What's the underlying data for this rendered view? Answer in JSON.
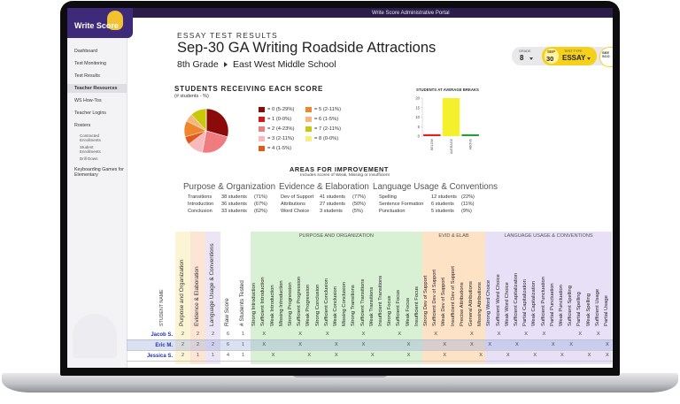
{
  "header": {
    "logo": "Write Score",
    "portal_title": "Write Score Administrative Portal"
  },
  "sidebar": {
    "items": [
      "Dashboard",
      "Test Monitoring",
      "Test Results",
      "Teacher Resources",
      "WS How-Tos",
      "Teacher Logins",
      "Rosters",
      "Keyboarding Games for Elementary"
    ],
    "active": "Teacher Resources",
    "rosters_children": [
      "Contracted Enrollments",
      "Student Enrollments",
      "Drill Down"
    ]
  },
  "page": {
    "eyebrow": "ESSAY TEST RESULTS",
    "title": "Sep-30 GA Writing Roadside Attractions",
    "grade": "8th Grade",
    "school": "East West Middle School"
  },
  "filters": {
    "grade_label": "GRADE",
    "grade": "8",
    "date_month": "SEP",
    "date_day": "30",
    "test_type_label": "TEST TYPE",
    "test_type": "ESSAY",
    "see_scores": "SEE SCO"
  },
  "chart_data": [
    {
      "type": "pie",
      "title": "STUDENTS RECEIVING EACH SCORE",
      "subtitle": "(# students - %)",
      "categories": [
        "= 0 (5-29%)",
        "= 1 (0-0%)",
        "= 2 (4-23%)",
        "= 3 (2-11%)",
        "= 4 (1-5%)",
        "= 5 (2-11%)",
        "= 6 (1-5%)",
        "= 7 (2-11%)",
        "= 8 (0-0%)"
      ],
      "values": [
        5,
        0,
        4,
        2,
        1,
        2,
        1,
        2,
        0
      ],
      "colors": [
        "#8b0a0a",
        "#d11a1a",
        "#f07c80",
        "#f7b9bb",
        "#e4581c",
        "#f0862a",
        "#f6b77c",
        "#c9c90c",
        "#f6f07a"
      ]
    },
    {
      "type": "bar",
      "title": "STUDENTS AT AVERAGE BREAKS",
      "categories": [
        "BELOW",
        "AVERAGE",
        "ABOVE"
      ],
      "values": [
        1,
        20,
        1
      ],
      "colors": [
        "#e02222",
        "#f4f02c",
        "#2a9a3c"
      ],
      "ylim": [
        0,
        20
      ],
      "yticks": [
        0,
        5,
        10,
        15,
        20
      ]
    }
  ],
  "areas": {
    "title": "AREAS FOR IMPROVEMENT",
    "subtitle": "Includes scores of Weak, Missing or Insufficient",
    "groups": [
      {
        "name": "Purpose & Organization",
        "items": [
          {
            "skill": "Transitions",
            "students": "38 students",
            "percent": "(71%)"
          },
          {
            "skill": "Introduction",
            "students": "36 students",
            "percent": "(67%)"
          },
          {
            "skill": "Conclusion",
            "students": "33 students",
            "percent": "(62%)"
          }
        ]
      },
      {
        "name": "Evidence & Elaboration",
        "items": [
          {
            "skill": "Dev of Support",
            "students": "41 students",
            "percent": "(77%)"
          },
          {
            "skill": "Attributions",
            "students": "27 students",
            "percent": "(50%)"
          },
          {
            "skill": "Word Choice",
            "students": "3 students",
            "percent": "(5%)"
          }
        ]
      },
      {
        "name": "Language Usage & Conventions",
        "items": [
          {
            "skill": "Spelling",
            "students": "12 students",
            "percent": "(22%)"
          },
          {
            "skill": "Sentence Formation",
            "students": "6 students",
            "percent": "(11%)"
          },
          {
            "skill": "Punctuation",
            "students": "5 students",
            "percent": "(9%)"
          }
        ]
      }
    ]
  },
  "table": {
    "name_header": "STUDENT NAME",
    "summary_columns": [
      "Purpose and Organization",
      "Evidence & Elaboration",
      "Language Usage & Conventions",
      "Raw Score",
      "# Students Tested"
    ],
    "groups": [
      {
        "name": "PURPOSE AND ORGANIZATION",
        "color": "#d8f0d3",
        "columns": [
          "Strong Introduction",
          "Sufficient Introduction",
          "Weak Introduction",
          "Missing Introduction",
          "Strong Progression",
          "Sufficient Progression",
          "Weak Progression",
          "Strong Conclusion",
          "Sufficient Conclusion",
          "Weak Conclusion",
          "Missing Conclusion",
          "Strong Transitions",
          "Sufficient Transitions",
          "Weak Transitions",
          "Insufficient Transitions",
          "Strong Focus",
          "Sufficient Focus",
          "Weak Focus",
          "Insufficient Focus"
        ]
      },
      {
        "name": "EVID & ELAB",
        "color": "#fde2c6",
        "columns": [
          "Strong Dev of Support",
          "Sufficient Dev of Support",
          "Weak Dev of Support",
          "Insufficient Dev of Support",
          "Precise Attributions",
          "General Attributions",
          "Missing Attributions"
        ]
      },
      {
        "name": "LANGUAGE USAGE & CONVENTIONS",
        "color": "#e7e0f6",
        "columns": [
          "Strong Word Choice",
          "Sufficient Word Choice",
          "Weak Word Choice",
          "Sufficient Capitalization",
          "Partial Capitalization",
          "Weak Capitalization",
          "Sufficient Punctuation",
          "Partial Punctuation",
          "Weak Punctuation",
          "Sufficient Spelling",
          "Partial Spelling",
          "Weak Spelling",
          "Sufficient Usage",
          "Partial Usage"
        ]
      }
    ],
    "rows": [
      {
        "name": "Jacob S.",
        "scores": [
          2,
          2,
          2,
          6,
          1
        ],
        "marks": [
          null,
          "X",
          null,
          null,
          null,
          "X",
          null,
          null,
          "X",
          null,
          null,
          null,
          "X",
          null,
          null,
          null,
          "X",
          null,
          null,
          null,
          "X",
          null,
          null,
          null,
          "X",
          null,
          null,
          "X",
          null,
          null,
          "X",
          null,
          "X",
          null,
          null,
          null,
          "X",
          null,
          "X",
          null
        ]
      },
      {
        "name": "Eric M.",
        "scores": [
          2,
          2,
          2,
          6,
          1
        ],
        "marks": [
          null,
          "X",
          null,
          null,
          null,
          "X",
          null,
          null,
          null,
          "X",
          null,
          null,
          "X",
          null,
          null,
          null,
          null,
          "X",
          null,
          null,
          null,
          "X",
          null,
          null,
          "X",
          null,
          "X",
          null,
          null,
          "X",
          null,
          null,
          null,
          "X",
          null,
          "X",
          null,
          null,
          null,
          "X"
        ]
      },
      {
        "name": "Jessica S.",
        "scores": [
          2,
          1,
          1,
          4,
          1
        ],
        "marks": [
          null,
          null,
          "X",
          null,
          null,
          null,
          "X",
          null,
          null,
          "X",
          null,
          null,
          null,
          "X",
          null,
          null,
          null,
          "X",
          null,
          null,
          null,
          "X",
          null,
          null,
          null,
          "X",
          null,
          null,
          "X",
          null,
          null,
          "X",
          null,
          null,
          "X",
          null,
          null,
          "X",
          null,
          "X"
        ]
      }
    ]
  }
}
